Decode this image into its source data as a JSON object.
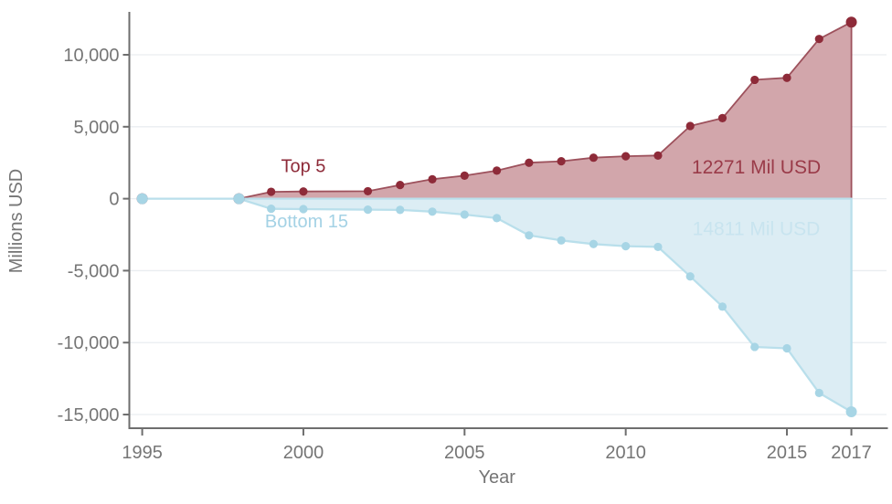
{
  "chart_data": {
    "type": "area",
    "title": "",
    "xlabel": "Year",
    "ylabel": "Millions USD",
    "grid": true,
    "legend_position": "none",
    "xlim": [
      1994.6,
      2018.09
    ],
    "ylim": [
      -15950,
      12983
    ],
    "x_ticks": [
      1995,
      2000,
      2005,
      2010,
      2015,
      2017
    ],
    "x_tick_labels": [
      "1995",
      "2000",
      "2005",
      "2010",
      "2015",
      "2017"
    ],
    "y_ticks": [
      10000,
      5000,
      0,
      -5000,
      -10000,
      -15000
    ],
    "y_tick_labels": [
      "10,000",
      "5,000",
      "0",
      "-5,000",
      "-10,000",
      "-15,000"
    ],
    "x": [
      1995,
      1998,
      1999,
      2000,
      2002,
      2003,
      2004,
      2005,
      2006,
      2007,
      2008,
      2009,
      2010,
      2011,
      2012,
      2013,
      2014,
      2015,
      2016,
      2017
    ],
    "series": [
      {
        "id": "top5",
        "name": "Top 5",
        "values": [
          0,
          0,
          480,
          500,
          520,
          950,
          1350,
          1600,
          1950,
          2500,
          2600,
          2850,
          2950,
          3000,
          5050,
          5600,
          8260,
          8400,
          11100,
          12271
        ],
        "line_color": "#9d515c",
        "fill_color": "#d2a6ab",
        "marker_color": "#8e2b39"
      },
      {
        "id": "bottom15",
        "name": "Bottom 15",
        "values": [
          0,
          0,
          -700,
          -720,
          -760,
          -780,
          -900,
          -1100,
          -1350,
          -2550,
          -2900,
          -3150,
          -3300,
          -3350,
          -5400,
          -7500,
          -10300,
          -10400,
          -13500,
          -14811
        ],
        "line_color": "#b9dfeb",
        "fill_color": "#dcedf4",
        "marker_color": "#a7d5e5"
      }
    ],
    "annotations": [
      {
        "id": "series-label-top5",
        "text": "Top 5",
        "x": 2000.0,
        "y": 2300,
        "color": "#8e2b39"
      },
      {
        "id": "series-label-bottom15",
        "text": "Bottom 15",
        "x": 2000.1,
        "y": -1550,
        "color": "#a4d2e5"
      },
      {
        "id": "end-value-top5",
        "text": "12271 Mil USD",
        "x": 2014.05,
        "y": 2200,
        "color": "#9a3b49"
      },
      {
        "id": "end-value-bottom15",
        "text": "14811 Mil USD",
        "x": 2014.05,
        "y": -2100,
        "color": "#c8e4ef"
      }
    ],
    "colors": {
      "axis": "#6e6e6e",
      "tick_label": "#757575",
      "grid": "#e9edf0",
      "background": "#ffffff"
    }
  }
}
